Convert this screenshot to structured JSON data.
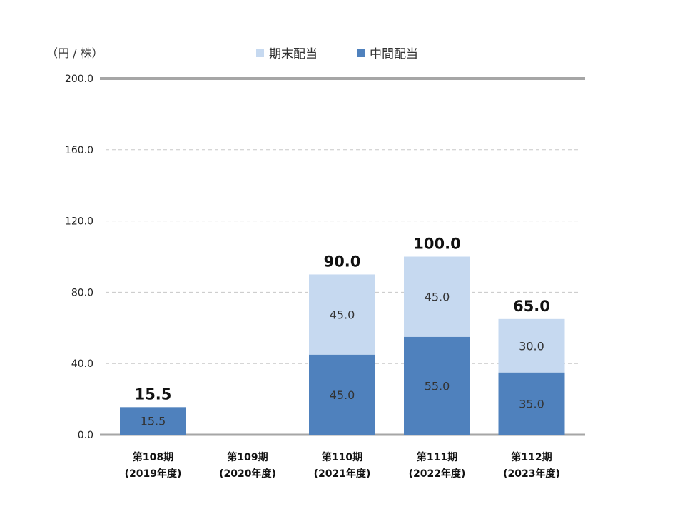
{
  "chart_data": {
    "type": "bar",
    "stacked": true,
    "unit_label": "（円 / 株）",
    "categories": [
      [
        "第108期",
        "(2019年度)"
      ],
      [
        "第109期",
        "(2020年度)"
      ],
      [
        "第110期",
        "(2021年度)"
      ],
      [
        "第111期",
        "(2022年度)"
      ],
      [
        "第112期",
        "(2023年度)"
      ]
    ],
    "series": [
      {
        "name": "中間配当",
        "color": "#4f81bd",
        "values": [
          15.5,
          null,
          45.0,
          55.0,
          35.0
        ]
      },
      {
        "name": "期末配当",
        "color": "#c6d9f0",
        "values": [
          null,
          null,
          45.0,
          45.0,
          30.0
        ]
      }
    ],
    "totals": [
      15.5,
      null,
      90.0,
      100.0,
      65.0
    ],
    "legend_order": [
      "期末配当",
      "中間配当"
    ],
    "legend_position": "top-center",
    "ylim": [
      0,
      200
    ],
    "yticks": [
      0,
      40,
      80,
      120,
      160,
      200
    ],
    "grid": true
  }
}
